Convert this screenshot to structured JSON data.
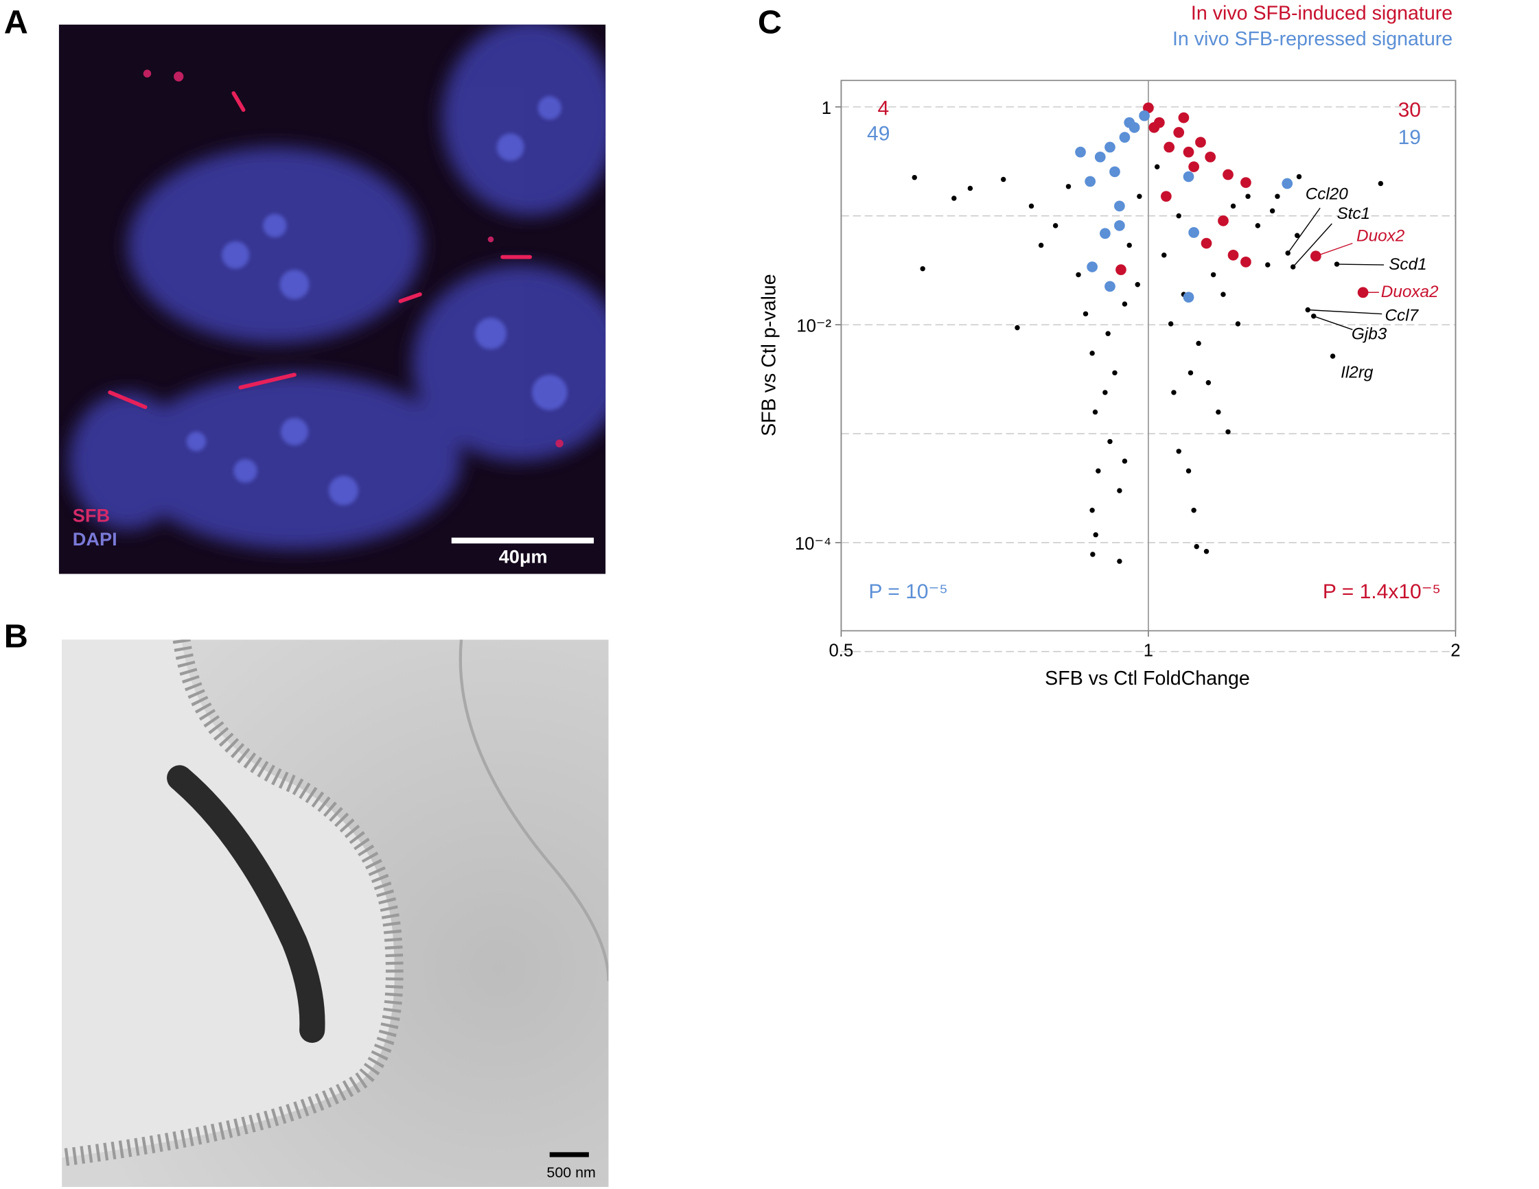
{
  "panels": {
    "A": {
      "label": "A",
      "legend": [
        "SFB",
        "DAPI"
      ],
      "scale_bar": "40μm"
    },
    "B": {
      "label": "B",
      "scale_bar": "500 nm"
    },
    "C": {
      "label": "C"
    }
  },
  "chart_data": {
    "type": "scatter",
    "xlabel": "SFB vs Ctl FoldChange",
    "ylabel": "SFB vs Ctl p-value",
    "xlog": true,
    "ylog": true,
    "xlim": [
      0.5,
      2
    ],
    "ylim": [
      1.55e-05,
      1.75
    ],
    "xticks": [
      0.5,
      1,
      2
    ],
    "yticks": [
      1,
      {
        "value": 0.01,
        "label": "10⁻²"
      },
      {
        "value": 0.0001,
        "label": "10⁻⁴"
      }
    ],
    "xgrid": true,
    "ygrid_lines": [
      1,
      0.1,
      0.01,
      0.001,
      0.0001,
      1e-05
    ],
    "legend": "upper right",
    "series": [
      {
        "color": "#000000",
        "x": [
          0.59,
          0.601,
          0.645,
          0.669,
          0.721,
          0.744,
          0.768,
          0.785,
          0.811,
          0.835,
          0.854,
          0.868,
          0.881,
          0.887,
          0.893,
          0.881,
          0.888,
          0.882,
          0.937,
          0.917,
          0.907,
          0.927,
          0.948,
          0.958,
          0.98,
          0.976,
          0.913,
          0.937,
          0.948,
          1.02,
          1.036,
          1.052,
          1.059,
          1.071,
          1.095,
          1.108,
          1.115,
          1.14,
          1.083,
          1.12,
          1.145,
          1.171,
          1.184,
          1.211,
          1.252,
          1.28,
          1.323,
          1.338,
          1.405,
          1.689,
          1.399,
          1.309,
          1.224,
          1.158,
          1.071,
          1.197,
          1.1
        ],
        "values": [
          0.225,
          0.0327,
          0.145,
          0.179,
          0.216,
          0.0094,
          0.123,
          0.0537,
          0.0813,
          0.186,
          0.0288,
          0.0126,
          0.00548,
          0.00158,
          0.000455,
          0.000198,
          0.000118,
          7.8e-05,
          6.74e-05,
          0.000847,
          0.00239,
          0.00362,
          0.0155,
          0.0537,
          0.151,
          0.0234,
          0.0083,
          0.0003,
          0.00056,
          0.282,
          0.0436,
          0.0102,
          0.00239,
          0.000689,
          0.000455,
          0.000198,
          9.2e-05,
          8.3e-05,
          0.019,
          0.00675,
          0.00294,
          0.00158,
          0.019,
          0.123,
          0.151,
          0.0813,
          0.111,
          0.151,
          0.229,
          0.198,
          0.066,
          0.0355,
          0.0102,
          0.0288,
          0.1,
          0.00104,
          0.00362
        ]
      },
      {
        "name": "In vivo SFB-induced signature",
        "color": "#c8102e",
        "x": [
          1.0,
          1.025,
          1.048,
          1.071,
          1.095,
          1.125,
          1.108,
          1.15,
          1.197,
          1.246,
          1.041,
          1.184,
          1.211,
          1.246,
          1.14,
          0.94,
          1.013,
          1.083
        ],
        "values": [
          0.98,
          0.718,
          0.427,
          0.583,
          0.385,
          0.474,
          0.282,
          0.347,
          0.239,
          0.202,
          0.151,
          0.09,
          0.0436,
          0.0377,
          0.056,
          0.032,
          0.647,
          0.796
        ]
      },
      {
        "name": "In vivo SFB-repressed signature",
        "color": "#5b8fd6",
        "x": [
          0.991,
          0.969,
          0.948,
          0.917,
          0.897,
          0.858,
          0.877,
          0.927,
          0.937,
          0.907,
          0.937,
          0.881,
          0.917,
          1.095,
          1.108,
          1.095,
          1.368,
          0.958
        ],
        "values": [
          0.83,
          0.647,
          0.526,
          0.427,
          0.347,
          0.385,
          0.207,
          0.254,
          0.123,
          0.0689,
          0.0813,
          0.034,
          0.0225,
          0.229,
          0.0703,
          0.0179,
          0.198,
          0.718
        ]
      }
    ],
    "annotations": [
      {
        "text": "Ccl20",
        "x": 1.37,
        "y": 0.0455,
        "color": "#000000"
      },
      {
        "text": "Stc1",
        "x": 1.386,
        "y": 0.034,
        "color": "#000000"
      },
      {
        "text": "Duox2",
        "x": 1.459,
        "y": 0.0427,
        "color": "#c8102e"
      },
      {
        "text": "Scd1",
        "x": 1.53,
        "y": 0.036,
        "color": "#000000"
      },
      {
        "text": "Duoxa2",
        "x": 1.623,
        "y": 0.0198,
        "color": "#c8102e"
      },
      {
        "text": "Ccl7",
        "x": 1.433,
        "y": 0.0137,
        "color": "#000000"
      },
      {
        "text": "Gjb3",
        "x": 1.452,
        "y": 0.012,
        "color": "#000000"
      },
      {
        "text": "Il2rg",
        "x": 1.516,
        "y": 0.00515,
        "color": "#000000"
      }
    ],
    "counts": {
      "left_induced": 4,
      "left_repressed": 49,
      "right_induced": 30,
      "right_repressed": 19
    },
    "p_labels": {
      "left": "P = 10⁻⁵",
      "right": "P = 1.4x10⁻⁵"
    }
  }
}
